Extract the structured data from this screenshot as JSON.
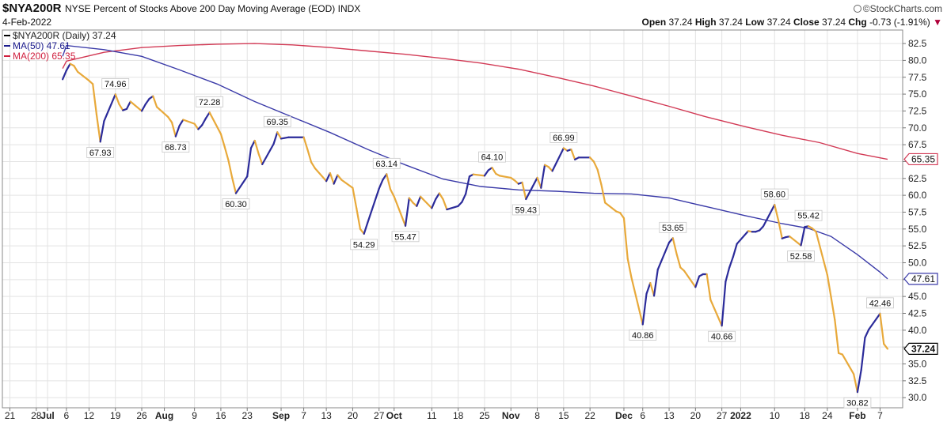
{
  "header": {
    "symbol": "$NYA200R",
    "description": "NYSE Percent of Stocks Above 200 Day Moving Average (EOD)",
    "exchange": "INDX",
    "date": "4-Feb-2022",
    "brand": "©StockCharts.com",
    "open_label": "Open",
    "open": "37.24",
    "high_label": "High",
    "high": "37.24",
    "low_label": "Low",
    "low": "37.24",
    "close_label": "Close",
    "close": "37.24",
    "chg_label": "Chg",
    "chg": "-0.73 (-1.91%)"
  },
  "legend": [
    {
      "text": "$NYA200R (Daily) 37.24",
      "color": "#000000"
    },
    {
      "text": "MA(50) 47.61",
      "color": "#1a1a8c"
    },
    {
      "text": "MA(200) 65.35",
      "color": "#d0203f"
    }
  ],
  "chart_data": {
    "type": "line",
    "ylim": [
      28.5,
      84.5
    ],
    "yticks": [
      30,
      32.5,
      35,
      37.5,
      40,
      42.5,
      45,
      47.5,
      50,
      52.5,
      55,
      57.5,
      60,
      62.5,
      65,
      67.5,
      70,
      72.5,
      75,
      77.5,
      80,
      82.5
    ],
    "ytick_labels": [
      "30.0",
      "32.5",
      "35.0",
      "37.5",
      "40.0",
      "42.5",
      "45.0",
      "47.5",
      "50.0",
      "52.5",
      "55.0",
      "57.5",
      "60.0",
      "62.5",
      "65.0",
      "67.5",
      "70.0",
      "72.5",
      "75.0",
      "77.5",
      "80.0",
      "82.5"
    ],
    "x_ticks": [
      {
        "label": "21",
        "d": -15,
        "bold": false
      },
      {
        "label": "28",
        "d": -8,
        "bold": false
      },
      {
        "label": "Jul",
        "d": -5,
        "bold": true
      },
      {
        "label": "6",
        "d": 0,
        "bold": false
      },
      {
        "label": "12",
        "d": 6,
        "bold": false
      },
      {
        "label": "19",
        "d": 13,
        "bold": false
      },
      {
        "label": "26",
        "d": 20,
        "bold": false
      },
      {
        "label": "Aug",
        "d": 26,
        "bold": true
      },
      {
        "label": "9",
        "d": 34,
        "bold": false
      },
      {
        "label": "16",
        "d": 41,
        "bold": false
      },
      {
        "label": "23",
        "d": 48,
        "bold": false
      },
      {
        "label": "Sep",
        "d": 57,
        "bold": true
      },
      {
        "label": "7",
        "d": 63,
        "bold": false
      },
      {
        "label": "13",
        "d": 69,
        "bold": false
      },
      {
        "label": "20",
        "d": 76,
        "bold": false
      },
      {
        "label": "27",
        "d": 83,
        "bold": false
      },
      {
        "label": "Oct",
        "d": 87,
        "bold": true
      },
      {
        "label": "11",
        "d": 97,
        "bold": false
      },
      {
        "label": "18",
        "d": 104,
        "bold": false
      },
      {
        "label": "25",
        "d": 111,
        "bold": false
      },
      {
        "label": "Nov",
        "d": 118,
        "bold": true
      },
      {
        "label": "8",
        "d": 125,
        "bold": false
      },
      {
        "label": "15",
        "d": 132,
        "bold": false
      },
      {
        "label": "22",
        "d": 139,
        "bold": false
      },
      {
        "label": "Dec",
        "d": 148,
        "bold": true
      },
      {
        "label": "6",
        "d": 153,
        "bold": false
      },
      {
        "label": "13",
        "d": 160,
        "bold": false
      },
      {
        "label": "20",
        "d": 167,
        "bold": false
      },
      {
        "label": "27",
        "d": 174,
        "bold": false
      },
      {
        "label": "2022",
        "d": 179,
        "bold": true
      },
      {
        "label": "10",
        "d": 188,
        "bold": false
      },
      {
        "label": "18",
        "d": 196,
        "bold": false
      },
      {
        "label": "24",
        "d": 202,
        "bold": false
      },
      {
        "label": "Feb",
        "d": 210,
        "bold": true
      },
      {
        "label": "7",
        "d": 216,
        "bold": false
      }
    ],
    "series": [
      {
        "name": "$NYA200R (Daily)",
        "up_color": "#2b2b9a",
        "down_color": "#e8a93a",
        "points": [
          [
            -1,
            77.2
          ],
          [
            0,
            78.5
          ],
          [
            1,
            79.5
          ],
          [
            2,
            79.2
          ],
          [
            3,
            78.3
          ],
          [
            6,
            77.0
          ],
          [
            7,
            76.5
          ],
          [
            8,
            72.0
          ],
          [
            9,
            67.93
          ],
          [
            10,
            71.0
          ],
          [
            13,
            74.96
          ],
          [
            14,
            73.5
          ],
          [
            15,
            72.6
          ],
          [
            16,
            72.8
          ],
          [
            17,
            73.9
          ],
          [
            20,
            72.5
          ],
          [
            21,
            73.5
          ],
          [
            22,
            74.3
          ],
          [
            23,
            74.7
          ],
          [
            24,
            73.1
          ],
          [
            27,
            71.6
          ],
          [
            28,
            70.8
          ],
          [
            29,
            68.73
          ],
          [
            30,
            70.3
          ],
          [
            31,
            71.2
          ],
          [
            34,
            70.6
          ],
          [
            35,
            69.8
          ],
          [
            36,
            70.4
          ],
          [
            37,
            71.4
          ],
          [
            38,
            72.28
          ],
          [
            41,
            69.1
          ],
          [
            42,
            67.2
          ],
          [
            43,
            65.2
          ],
          [
            44,
            62.6
          ],
          [
            45,
            60.3
          ],
          [
            48,
            62.8
          ],
          [
            49,
            67.0
          ],
          [
            50,
            68.1
          ],
          [
            51,
            66.2
          ],
          [
            52,
            64.6
          ],
          [
            55,
            67.6
          ],
          [
            56,
            69.35
          ],
          [
            57,
            68.4
          ],
          [
            58,
            68.5
          ],
          [
            59,
            68.6
          ],
          [
            63,
            68.6
          ],
          [
            64,
            66.8
          ],
          [
            65,
            64.9
          ],
          [
            66,
            64.0
          ],
          [
            69,
            62.1
          ],
          [
            70,
            63.3
          ],
          [
            71,
            61.7
          ],
          [
            72,
            63.0
          ],
          [
            73,
            62.3
          ],
          [
            76,
            61.1
          ],
          [
            77,
            58.1
          ],
          [
            78,
            55.0
          ],
          [
            79,
            54.29
          ],
          [
            80,
            56.0
          ],
          [
            83,
            61.0
          ],
          [
            84,
            62.3
          ],
          [
            85,
            63.14
          ],
          [
            86,
            60.9
          ],
          [
            87,
            59.8
          ],
          [
            90,
            55.47
          ],
          [
            91,
            59.6
          ],
          [
            92,
            58.9
          ],
          [
            93,
            58.4
          ],
          [
            94,
            59.8
          ],
          [
            97,
            58.1
          ],
          [
            98,
            59.4
          ],
          [
            99,
            60.3
          ],
          [
            100,
            59.4
          ],
          [
            101,
            57.9
          ],
          [
            104,
            58.4
          ],
          [
            105,
            59.0
          ],
          [
            106,
            60.2
          ],
          [
            107,
            62.8
          ],
          [
            108,
            63.1
          ],
          [
            111,
            62.9
          ],
          [
            112,
            63.7
          ],
          [
            113,
            64.1
          ],
          [
            114,
            63.2
          ],
          [
            115,
            62.9
          ],
          [
            118,
            62.6
          ],
          [
            119,
            62.2
          ],
          [
            120,
            61.7
          ],
          [
            121,
            61.9
          ],
          [
            122,
            59.43
          ],
          [
            125,
            62.6
          ],
          [
            126,
            61.1
          ],
          [
            127,
            64.5
          ],
          [
            128,
            64.2
          ],
          [
            129,
            63.6
          ],
          [
            132,
            66.99
          ],
          [
            133,
            66.6
          ],
          [
            134,
            66.8
          ],
          [
            135,
            65.3
          ],
          [
            136,
            65.6
          ],
          [
            139,
            65.6
          ],
          [
            140,
            65.0
          ],
          [
            141,
            63.8
          ],
          [
            142,
            61.6
          ],
          [
            143,
            58.9
          ],
          [
            146,
            57.6
          ],
          [
            147,
            57.4
          ],
          [
            148,
            56.6
          ],
          [
            149,
            50.6
          ],
          [
            150,
            47.8
          ],
          [
            153,
            40.86
          ],
          [
            154,
            45.4
          ],
          [
            155,
            47.0
          ],
          [
            156,
            45.1
          ],
          [
            157,
            49.0
          ],
          [
            160,
            53.0
          ],
          [
            161,
            53.65
          ],
          [
            162,
            51.3
          ],
          [
            163,
            49.3
          ],
          [
            164,
            48.8
          ],
          [
            167,
            46.4
          ],
          [
            168,
            48.0
          ],
          [
            169,
            48.3
          ],
          [
            170,
            48.3
          ],
          [
            171,
            44.5
          ],
          [
            174,
            40.66
          ],
          [
            175,
            47.2
          ],
          [
            176,
            49.3
          ],
          [
            177,
            50.9
          ],
          [
            178,
            52.8
          ],
          [
            181,
            54.7
          ],
          [
            182,
            54.6
          ],
          [
            183,
            54.6
          ],
          [
            184,
            54.8
          ],
          [
            185,
            55.4
          ],
          [
            188,
            58.6
          ],
          [
            189,
            56.3
          ],
          [
            190,
            53.6
          ],
          [
            191,
            53.8
          ],
          [
            192,
            53.9
          ],
          [
            195,
            52.58
          ],
          [
            196,
            55.3
          ],
          [
            197,
            55.42
          ],
          [
            198,
            55.1
          ],
          [
            199,
            54.6
          ],
          [
            202,
            48.2
          ],
          [
            203,
            44.9
          ],
          [
            204,
            41.5
          ],
          [
            205,
            36.6
          ],
          [
            206,
            36.4
          ],
          [
            209,
            33.5
          ],
          [
            210,
            30.82
          ],
          [
            211,
            34.1
          ],
          [
            212,
            38.9
          ],
          [
            213,
            40.1
          ],
          [
            216,
            42.46
          ],
          [
            217,
            37.97
          ],
          [
            218,
            37.24
          ]
        ]
      },
      {
        "name": "MA(50)",
        "color": "#3a3aa8",
        "points": [
          [
            -1,
            80.6
          ],
          [
            0,
            82.2
          ],
          [
            10,
            81.6
          ],
          [
            20,
            80.6
          ],
          [
            30,
            78.6
          ],
          [
            40,
            76.5
          ],
          [
            50,
            73.9
          ],
          [
            60,
            71.6
          ],
          [
            70,
            69.3
          ],
          [
            80,
            66.8
          ],
          [
            90,
            64.5
          ],
          [
            100,
            62.4
          ],
          [
            110,
            61.3
          ],
          [
            120,
            60.8
          ],
          [
            130,
            60.6
          ],
          [
            140,
            60.3
          ],
          [
            150,
            60.2
          ],
          [
            160,
            59.6
          ],
          [
            170,
            58.3
          ],
          [
            180,
            57.0
          ],
          [
            190,
            55.8
          ],
          [
            197,
            55.1
          ],
          [
            203,
            53.9
          ],
          [
            210,
            51.2
          ],
          [
            216,
            48.6
          ],
          [
            218,
            47.61
          ]
        ]
      },
      {
        "name": "MA(200)",
        "color": "#d23a55",
        "points": [
          [
            -1,
            78.8
          ],
          [
            0,
            79.9
          ],
          [
            10,
            81.2
          ],
          [
            20,
            81.9
          ],
          [
            30,
            82.2
          ],
          [
            40,
            82.4
          ],
          [
            50,
            82.5
          ],
          [
            60,
            82.3
          ],
          [
            70,
            81.9
          ],
          [
            80,
            81.4
          ],
          [
            90,
            80.9
          ],
          [
            100,
            80.3
          ],
          [
            110,
            79.6
          ],
          [
            120,
            78.7
          ],
          [
            130,
            77.5
          ],
          [
            140,
            76.2
          ],
          [
            150,
            74.7
          ],
          [
            160,
            73.2
          ],
          [
            170,
            71.6
          ],
          [
            180,
            70.2
          ],
          [
            190,
            68.9
          ],
          [
            200,
            67.8
          ],
          [
            210,
            66.2
          ],
          [
            218,
            65.35
          ]
        ]
      }
    ],
    "annotations": [
      {
        "label": "74.96",
        "d": 13,
        "v": 74.96,
        "pos": "above"
      },
      {
        "label": "67.93",
        "d": 9,
        "v": 67.93,
        "pos": "below"
      },
      {
        "label": "72.28",
        "d": 38,
        "v": 72.28,
        "pos": "above"
      },
      {
        "label": "68.73",
        "d": 29,
        "v": 68.73,
        "pos": "below"
      },
      {
        "label": "60.30",
        "d": 45,
        "v": 60.3,
        "pos": "below"
      },
      {
        "label": "69.35",
        "d": 56,
        "v": 69.35,
        "pos": "above"
      },
      {
        "label": "63.14",
        "d": 85,
        "v": 63.14,
        "pos": "above"
      },
      {
        "label": "54.29",
        "d": 79,
        "v": 54.29,
        "pos": "below"
      },
      {
        "label": "55.47",
        "d": 90,
        "v": 55.47,
        "pos": "below"
      },
      {
        "label": "64.10",
        "d": 113,
        "v": 64.1,
        "pos": "above"
      },
      {
        "label": "59.43",
        "d": 122,
        "v": 59.43,
        "pos": "below"
      },
      {
        "label": "66.99",
        "d": 132,
        "v": 66.99,
        "pos": "above"
      },
      {
        "label": "53.65",
        "d": 161,
        "v": 53.65,
        "pos": "above"
      },
      {
        "label": "40.86",
        "d": 153,
        "v": 40.86,
        "pos": "below"
      },
      {
        "label": "40.66",
        "d": 174,
        "v": 40.66,
        "pos": "below"
      },
      {
        "label": "58.60",
        "d": 188,
        "v": 58.6,
        "pos": "above"
      },
      {
        "label": "55.42",
        "d": 197,
        "v": 55.42,
        "pos": "above"
      },
      {
        "label": "52.58",
        "d": 195,
        "v": 52.58,
        "pos": "below"
      },
      {
        "label": "42.46",
        "d": 216,
        "v": 42.46,
        "pos": "above"
      },
      {
        "label": "30.82",
        "d": 210,
        "v": 30.82,
        "pos": "below"
      }
    ],
    "last_value_tags": [
      {
        "label": "65.35",
        "v": 65.35,
        "color": "#d23a55",
        "bold": false
      },
      {
        "label": "47.61",
        "v": 47.61,
        "color": "#3a3aa8",
        "bold": false
      },
      {
        "label": "37.24",
        "v": 37.24,
        "color": "#000000",
        "bold": true
      }
    ],
    "grid": true
  }
}
